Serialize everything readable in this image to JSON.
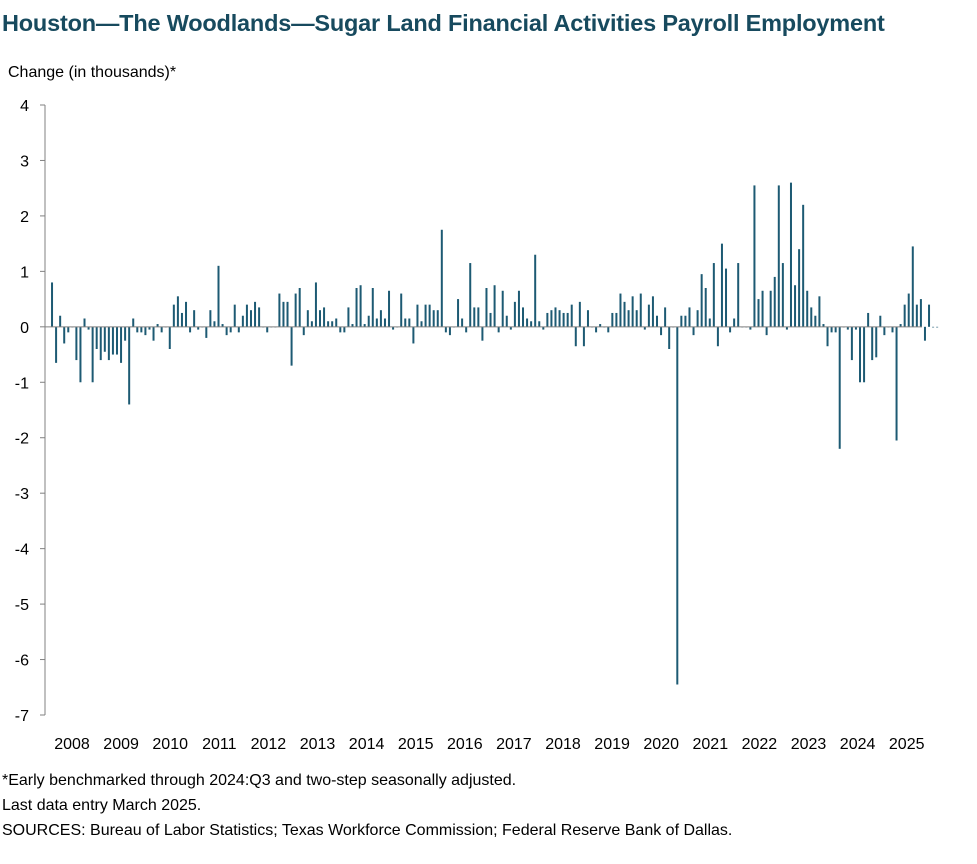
{
  "title": "Houston—The Woodlands—Sugar Land Financial Activities Payroll Employment",
  "notes": {
    "footnote": "*Early benchmarked through 2024:Q3 and two-step seasonally adjusted.",
    "last_entry": "Last data entry March 2025.",
    "sources": "SOURCES: Bureau of Labor Statistics; Texas Workforce Commission; Federal Reserve Bank of Dallas."
  },
  "colors": {
    "bar": "#1D5A73",
    "axis": "#808080",
    "title": "#174A5E"
  },
  "chart_data": {
    "type": "bar",
    "title": "Houston—The Woodlands—Sugar Land Financial Activities Payroll Employment",
    "xlabel": "",
    "ylabel": "Change (in thousands)*",
    "ylim": [
      -7,
      4
    ],
    "yticks": [
      4,
      3,
      2,
      1,
      0,
      -1,
      -2,
      -3,
      -4,
      -5,
      -6,
      -7
    ],
    "xtick_labels": [
      "2008",
      "2009",
      "2010",
      "2011",
      "2012",
      "2013",
      "2014",
      "2015",
      "2016",
      "2017",
      "2018",
      "2019",
      "2020",
      "2021",
      "2022",
      "2023",
      "2024",
      "2025"
    ],
    "start": "2008-01",
    "end": "2025-03",
    "frequency": "monthly",
    "grid": false,
    "legend": "none",
    "values": [
      0.8,
      -0.65,
      0.2,
      -0.3,
      -0.1,
      0,
      -0.6,
      -1.0,
      0.15,
      -0.05,
      -1.0,
      -0.4,
      -0.6,
      -0.45,
      -0.6,
      -0.5,
      -0.5,
      -0.65,
      -0.25,
      -1.4,
      0.15,
      -0.1,
      -0.1,
      -0.15,
      -0.05,
      -0.25,
      0.05,
      -0.1,
      0,
      -0.4,
      0.4,
      0.55,
      0.25,
      0.45,
      -0.1,
      0.3,
      -0.05,
      0,
      -0.2,
      0.3,
      0.1,
      1.1,
      0.05,
      -0.15,
      -0.1,
      0.4,
      -0.1,
      0.2,
      0.4,
      0.3,
      0.45,
      0.35,
      0,
      -0.1,
      0,
      0,
      0.6,
      0.45,
      0.45,
      -0.7,
      0.6,
      0.7,
      -0.15,
      0.3,
      0.1,
      0.8,
      0.3,
      0.35,
      0.1,
      0.1,
      0.15,
      -0.1,
      -0.1,
      0.35,
      0.05,
      0.7,
      0.75,
      0.05,
      0.2,
      0.7,
      0.15,
      0.3,
      0.15,
      0.65,
      -0.05,
      0,
      0.6,
      0.15,
      0.15,
      -0.3,
      0.4,
      0.1,
      0.4,
      0.4,
      0.3,
      0.3,
      1.75,
      -0.1,
      -0.15,
      0,
      0.5,
      0.15,
      -0.1,
      1.15,
      0.35,
      0.35,
      -0.25,
      0.7,
      0.25,
      0.75,
      -0.1,
      0.65,
      0.2,
      -0.05,
      0.45,
      0.65,
      0.35,
      0.15,
      0.1,
      1.3,
      0.1,
      -0.05,
      0.25,
      0.3,
      0.35,
      0.3,
      0.25,
      0.25,
      0.4,
      -0.35,
      0.45,
      -0.35,
      0.3,
      0,
      -0.1,
      0.05,
      0,
      -0.1,
      0.25,
      0.25,
      0.6,
      0.45,
      0.3,
      0.55,
      0.3,
      0.6,
      -0.05,
      0.4,
      0.55,
      0.2,
      -0.15,
      0.35,
      -0.4,
      0,
      -6.45,
      0.2,
      0.2,
      0.35,
      -0.15,
      0.3,
      0.95,
      0.7,
      0.15,
      1.15,
      -0.35,
      1.5,
      1.05,
      -0.1,
      0.15,
      1.15,
      0,
      0,
      -0.05,
      2.55,
      0.5,
      0.65,
      -0.15,
      0.65,
      0.9,
      2.55,
      1.15,
      -0.05,
      2.6,
      0.75,
      1.4,
      2.2,
      0.65,
      0.35,
      0.2,
      0.55,
      0.05,
      -0.35,
      -0.1,
      -0.1,
      -2.2,
      0,
      -0.05,
      -0.6,
      -0.05,
      -1.0,
      -1.0,
      0.25,
      -0.6,
      -0.55,
      0.2,
      -0.15,
      0,
      -0.1,
      -2.05,
      0.05,
      0.4,
      0.6,
      1.45,
      0.4,
      0.5,
      -0.25,
      0.4,
      0,
      0
    ]
  }
}
